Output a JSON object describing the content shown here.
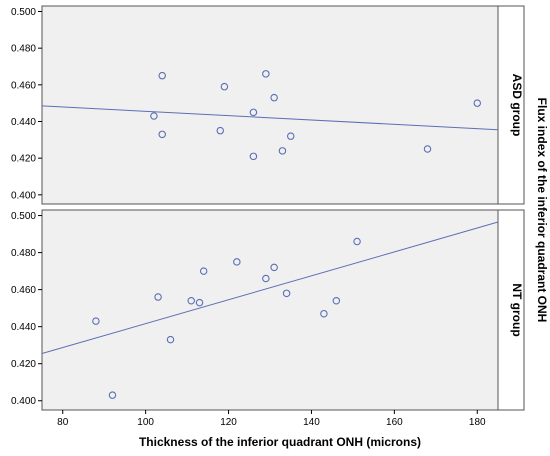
{
  "chart_data": {
    "type": "scatter",
    "xlabel": "Thickness of the inferior quadrant ONH (microns)",
    "ylabel": "Flux index of the inferior quadrant ONH",
    "xlim": [
      75,
      185
    ],
    "x_ticks": [
      "80",
      "100",
      "120",
      "140",
      "160",
      "180"
    ],
    "x_tick_values": [
      80,
      100,
      120,
      140,
      160,
      180
    ],
    "grid": false,
    "colors": {
      "panel_bg": "#f0f0f0",
      "marker": "#5b6fb5",
      "fit_line": "#5b6fb5",
      "frame": "#555555"
    },
    "panels": [
      {
        "label": "ASD group",
        "ylim": [
          0.395,
          0.503
        ],
        "y_ticks": [
          "0.400",
          "0.420",
          "0.440",
          "0.460",
          "0.480",
          "0.500"
        ],
        "y_tick_values": [
          0.4,
          0.42,
          0.44,
          0.46,
          0.48,
          0.5
        ],
        "points": [
          {
            "x": 102,
            "y": 0.443
          },
          {
            "x": 104,
            "y": 0.465
          },
          {
            "x": 104,
            "y": 0.433
          },
          {
            "x": 118,
            "y": 0.435
          },
          {
            "x": 119,
            "y": 0.459
          },
          {
            "x": 126,
            "y": 0.445
          },
          {
            "x": 126,
            "y": 0.421
          },
          {
            "x": 129,
            "y": 0.466
          },
          {
            "x": 131,
            "y": 0.453
          },
          {
            "x": 133,
            "y": 0.424
          },
          {
            "x": 135,
            "y": 0.432
          },
          {
            "x": 168,
            "y": 0.425
          },
          {
            "x": 180,
            "y": 0.45
          }
        ],
        "fit_line": [
          {
            "x": 75,
            "y": 0.4485
          },
          {
            "x": 185,
            "y": 0.4355
          }
        ]
      },
      {
        "label": "NT group",
        "ylim": [
          0.395,
          0.503
        ],
        "y_ticks": [
          "0.400",
          "0.420",
          "0.440",
          "0.460",
          "0.480",
          "0.500"
        ],
        "y_tick_values": [
          0.4,
          0.42,
          0.44,
          0.46,
          0.48,
          0.5
        ],
        "points": [
          {
            "x": 88,
            "y": 0.443
          },
          {
            "x": 92,
            "y": 0.403
          },
          {
            "x": 103,
            "y": 0.456
          },
          {
            "x": 106,
            "y": 0.433
          },
          {
            "x": 111,
            "y": 0.454
          },
          {
            "x": 113,
            "y": 0.453
          },
          {
            "x": 114,
            "y": 0.47
          },
          {
            "x": 122,
            "y": 0.475
          },
          {
            "x": 129,
            "y": 0.466
          },
          {
            "x": 131,
            "y": 0.472
          },
          {
            "x": 134,
            "y": 0.458
          },
          {
            "x": 143,
            "y": 0.447
          },
          {
            "x": 146,
            "y": 0.454
          },
          {
            "x": 151,
            "y": 0.486
          }
        ],
        "fit_line": [
          {
            "x": 75,
            "y": 0.4255
          },
          {
            "x": 185,
            "y": 0.4965
          }
        ]
      }
    ]
  }
}
